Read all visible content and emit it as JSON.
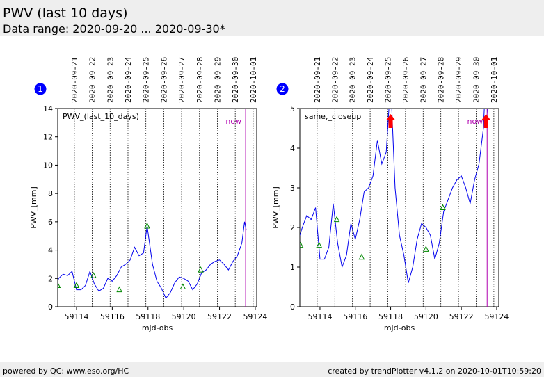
{
  "header": {
    "title": "PWV (last 10 days)",
    "subtitle": "Data range: 2020-09-20 ... 2020-09-30*"
  },
  "footer": {
    "left": "powered by QC: www.eso.org/HC",
    "right": "created by trendPlotter v4.1.2 on 2020-10-01T10:59:20"
  },
  "chart_data": [
    {
      "type": "line",
      "panel_number": "1",
      "title": "PWV_(last_10_days)",
      "x_label": "mjd-obs",
      "y_label": "PWV_[mm]",
      "xlim": [
        59112.95,
        59124.08
      ],
      "xticks": [
        59114,
        59116,
        59118,
        59120,
        59122,
        59124
      ],
      "ylim": [
        0,
        14
      ],
      "yticks": [
        0,
        2,
        4,
        6,
        8,
        10,
        12,
        14
      ],
      "top_ticks": [
        {
          "value": 59113.88,
          "label": "2020-09-21"
        },
        {
          "value": 59114.88,
          "label": "2020-09-22"
        },
        {
          "value": 59115.88,
          "label": "2020-09-23"
        },
        {
          "value": 59116.88,
          "label": "2020-09-24"
        },
        {
          "value": 59117.88,
          "label": "2020-09-25"
        },
        {
          "value": 59118.88,
          "label": "2020-09-26"
        },
        {
          "value": 59119.88,
          "label": "2020-09-27"
        },
        {
          "value": 59120.88,
          "label": "2020-09-28"
        },
        {
          "value": 59121.88,
          "label": "2020-09-29"
        },
        {
          "value": 59122.88,
          "label": "2020-09-30"
        },
        {
          "value": 59123.88,
          "label": "2020-10-01"
        }
      ],
      "now": {
        "x": 59123.46,
        "label": "now",
        "color": "#b000b0"
      },
      "series": [
        {
          "color": "#0000ee",
          "marker": "line",
          "x": [
            59112.95,
            59113.0,
            59113.25,
            59113.5,
            59113.75,
            59114.0,
            59114.25,
            59114.5,
            59114.75,
            59115.0,
            59115.25,
            59115.5,
            59115.75,
            59116.0,
            59116.25,
            59116.5,
            59116.75,
            59117.0,
            59117.25,
            59117.5,
            59117.75,
            59117.95,
            59118.25,
            59118.5,
            59118.75,
            59119.0,
            59119.25,
            59119.5,
            59119.75,
            59120.0,
            59120.25,
            59120.5,
            59120.75,
            59121.0,
            59121.25,
            59121.5,
            59121.75,
            59122.0,
            59122.25,
            59122.5,
            59122.75,
            59123.0,
            59123.25,
            59123.4,
            59123.5
          ],
          "values": [
            1.8,
            2.0,
            2.3,
            2.2,
            2.5,
            1.2,
            1.2,
            1.5,
            2.5,
            1.6,
            1.1,
            1.3,
            2.0,
            1.8,
            2.2,
            2.8,
            3.0,
            3.3,
            4.2,
            3.6,
            3.8,
            5.7,
            3.0,
            1.8,
            1.3,
            0.6,
            1.0,
            1.7,
            2.1,
            2.0,
            1.8,
            1.2,
            1.6,
            2.4,
            2.6,
            3.0,
            3.2,
            3.3,
            3.0,
            2.6,
            3.2,
            3.6,
            4.5,
            6.0,
            5.4
          ]
        },
        {
          "color": "#008800",
          "marker": "triangle",
          "x": [
            59112.95,
            59114.0,
            59114.95,
            59116.4,
            59117.95,
            59119.95,
            59120.95
          ],
          "values": [
            1.5,
            1.5,
            2.2,
            1.2,
            5.7,
            1.4,
            2.6
          ]
        }
      ]
    },
    {
      "type": "line",
      "panel_number": "2",
      "title": "same,_closeup",
      "x_label": "mjd-obs",
      "y_label": "PWV_[mm]",
      "xlim": [
        59112.86,
        59124.12
      ],
      "xticks": [
        59114,
        59116,
        59118,
        59120,
        59122,
        59124
      ],
      "ylim": [
        0,
        5
      ],
      "yticks": [
        0,
        1,
        2,
        3,
        4,
        5
      ],
      "top_ticks": [
        {
          "value": 59113.84,
          "label": "2020-09-21"
        },
        {
          "value": 59114.84,
          "label": "2020-09-22"
        },
        {
          "value": 59115.84,
          "label": "2020-09-23"
        },
        {
          "value": 59116.84,
          "label": "2020-09-24"
        },
        {
          "value": 59117.84,
          "label": "2020-09-25"
        },
        {
          "value": 59118.84,
          "label": "2020-09-26"
        },
        {
          "value": 59119.84,
          "label": "2020-09-27"
        },
        {
          "value": 59120.84,
          "label": "2020-09-28"
        },
        {
          "value": 59121.84,
          "label": "2020-09-29"
        },
        {
          "value": 59122.84,
          "label": "2020-09-30"
        },
        {
          "value": 59123.84,
          "label": "2020-10-01"
        }
      ],
      "now": {
        "x": 59123.46,
        "label": "now",
        "color": "#b000b0"
      },
      "overflow_color": "#ff0000",
      "series": [
        {
          "color": "#0000ee",
          "marker": "line",
          "x": [
            59112.86,
            59113.0,
            59113.25,
            59113.5,
            59113.75,
            59114.0,
            59114.25,
            59114.5,
            59114.75,
            59115.0,
            59115.25,
            59115.5,
            59115.75,
            59116.0,
            59116.25,
            59116.5,
            59116.75,
            59117.0,
            59117.25,
            59117.5,
            59117.75,
            59118.0,
            59118.25,
            59118.5,
            59118.75,
            59119.0,
            59119.25,
            59119.5,
            59119.75,
            59120.0,
            59120.25,
            59120.5,
            59120.75,
            59121.0,
            59121.25,
            59121.5,
            59121.75,
            59122.0,
            59122.25,
            59122.5,
            59122.75,
            59123.0,
            59123.25,
            59123.4,
            59123.5
          ],
          "values": [
            1.8,
            2.0,
            2.3,
            2.2,
            2.5,
            1.2,
            1.2,
            1.5,
            2.6,
            1.6,
            1.0,
            1.3,
            2.1,
            1.7,
            2.2,
            2.9,
            3.0,
            3.3,
            4.2,
            3.6,
            3.9,
            5.7,
            3.0,
            1.8,
            1.3,
            0.6,
            1.0,
            1.7,
            2.1,
            2.0,
            1.8,
            1.2,
            1.6,
            2.4,
            2.7,
            3.0,
            3.2,
            3.3,
            3.0,
            2.6,
            3.2,
            3.6,
            4.5,
            6.0,
            4.9
          ]
        },
        {
          "color": "#008800",
          "marker": "triangle",
          "x": [
            59112.9,
            59113.95,
            59114.95,
            59116.36,
            59120.0,
            59120.95
          ],
          "values": [
            1.55,
            1.55,
            2.2,
            1.25,
            1.45,
            2.5
          ]
        }
      ]
    }
  ]
}
